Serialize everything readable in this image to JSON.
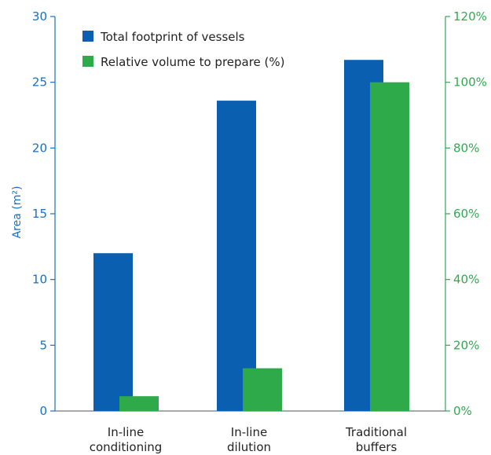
{
  "chart_data": {
    "type": "bar",
    "categories": [
      [
        "In-line",
        "conditioning"
      ],
      [
        "In-line",
        "dilution"
      ],
      [
        "Traditional",
        "buffers"
      ]
    ],
    "series": [
      {
        "name": "Total footprint of vessels",
        "axis": "left",
        "color": "#0b5fb0",
        "values": [
          12,
          23.6,
          26.7
        ]
      },
      {
        "name": "Relative volume to prepare (%)",
        "axis": "right",
        "color": "#2faa4b",
        "values": [
          4.5,
          13,
          100
        ]
      }
    ],
    "ylabel": "Area (m²)",
    "ylim": [
      0,
      30
    ],
    "yticks": [
      "0",
      "5",
      "10",
      "15",
      "20",
      "25",
      "30"
    ],
    "y2lim": [
      0,
      120
    ],
    "y2ticks": [
      "0%",
      "20%",
      "40%",
      "60%",
      "80%",
      "100%",
      "120%"
    ],
    "legend_position": "top-left",
    "grid": false,
    "left_axis_color": "#1a6fbf",
    "right_axis_color": "#33a852"
  }
}
